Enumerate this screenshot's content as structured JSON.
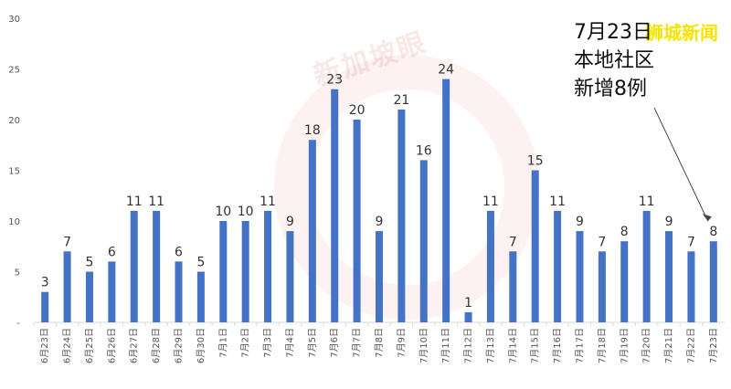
{
  "brand": "狮城新闻",
  "watermark": "新加坡眼",
  "annotation": {
    "line1": "7月23日",
    "line2": "本地社区",
    "line3": "新增8例"
  },
  "colors": {
    "bar": "#4472C4",
    "axis": "#d9d9d9",
    "label": "#333333"
  },
  "chart_data": {
    "type": "bar",
    "categories": [
      "6月23日",
      "6月24日",
      "6月25日",
      "6月26日",
      "6月27日",
      "6月28日",
      "6月29日",
      "6月30日",
      "7月1日",
      "7月2日",
      "7月3日",
      "7月4日",
      "7月5日",
      "7月6日",
      "7月7日",
      "7月8日",
      "7月9日",
      "7月10日",
      "7月11日",
      "7月12日",
      "7月13日",
      "7月14日",
      "7月15日",
      "7月16日",
      "7月17日",
      "7月18日",
      "7月19日",
      "7月20日",
      "7月21日",
      "7月22日",
      "7月23日"
    ],
    "values": [
      3,
      7,
      5,
      6,
      11,
      11,
      6,
      5,
      10,
      10,
      11,
      9,
      18,
      23,
      20,
      9,
      21,
      16,
      24,
      1,
      11,
      7,
      15,
      11,
      9,
      7,
      8,
      11,
      9,
      7,
      8
    ],
    "yticks": [
      "-",
      "5",
      "10",
      "15",
      "20",
      "25",
      "30"
    ],
    "ylim": [
      0,
      30
    ],
    "grid": false
  }
}
